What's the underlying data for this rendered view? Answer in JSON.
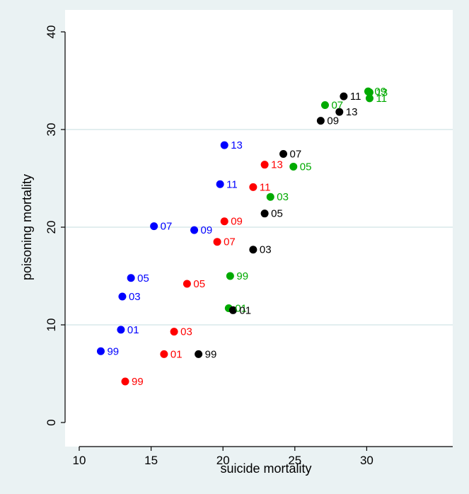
{
  "chart_data": {
    "type": "scatter",
    "title": "",
    "xlabel": "suicide mortality",
    "ylabel": "poisoning mortality",
    "xlim": [
      10,
      30.5
    ],
    "ylim": [
      0,
      40
    ],
    "xticks": [
      "10",
      "15",
      "20",
      "25",
      "30"
    ],
    "yticks": [
      "0",
      "10",
      "20",
      "30",
      "40"
    ],
    "grid": "horizontal",
    "legend": "none",
    "series": [
      {
        "color": "#0000ff",
        "points": [
          {
            "x": 11.5,
            "y": 7.3,
            "label": "99"
          },
          {
            "x": 12.9,
            "y": 9.5,
            "label": "01"
          },
          {
            "x": 13.0,
            "y": 12.9,
            "label": "03"
          },
          {
            "x": 13.6,
            "y": 14.8,
            "label": "05"
          },
          {
            "x": 15.2,
            "y": 20.1,
            "label": "07"
          },
          {
            "x": 18.0,
            "y": 19.7,
            "label": "09"
          },
          {
            "x": 19.8,
            "y": 24.4,
            "label": "11"
          },
          {
            "x": 20.1,
            "y": 28.4,
            "label": "13"
          }
        ]
      },
      {
        "color": "#ff0000",
        "points": [
          {
            "x": 13.2,
            "y": 4.2,
            "label": "99"
          },
          {
            "x": 15.9,
            "y": 7.0,
            "label": "01"
          },
          {
            "x": 16.6,
            "y": 9.3,
            "label": "03"
          },
          {
            "x": 17.5,
            "y": 14.2,
            "label": "05"
          },
          {
            "x": 19.6,
            "y": 18.5,
            "label": "07"
          },
          {
            "x": 20.1,
            "y": 20.6,
            "label": "09"
          },
          {
            "x": 22.1,
            "y": 24.1,
            "label": "11"
          },
          {
            "x": 22.9,
            "y": 26.4,
            "label": "13"
          }
        ]
      },
      {
        "color": "#00aa00",
        "points": [
          {
            "x": 20.5,
            "y": 15.0,
            "label": "99"
          },
          {
            "x": 20.4,
            "y": 11.7,
            "label": "01"
          },
          {
            "x": 23.3,
            "y": 23.1,
            "label": "03"
          },
          {
            "x": 24.9,
            "y": 26.2,
            "label": "05"
          },
          {
            "x": 27.1,
            "y": 32.5,
            "label": "07"
          },
          {
            "x": 30.1,
            "y": 33.9,
            "label": "09"
          },
          {
            "x": 30.2,
            "y": 33.2,
            "label": "11"
          },
          {
            "x": 30.2,
            "y": 33.8,
            "label": "13"
          }
        ]
      },
      {
        "color": "#000000",
        "points": [
          {
            "x": 18.3,
            "y": 7.0,
            "label": "99"
          },
          {
            "x": 20.7,
            "y": 11.5,
            "label": "01"
          },
          {
            "x": 22.1,
            "y": 17.7,
            "label": "03"
          },
          {
            "x": 22.9,
            "y": 21.4,
            "label": "05"
          },
          {
            "x": 24.2,
            "y": 27.5,
            "label": "07"
          },
          {
            "x": 26.8,
            "y": 30.9,
            "label": "09"
          },
          {
            "x": 28.4,
            "y": 33.4,
            "label": "11"
          },
          {
            "x": 28.1,
            "y": 31.8,
            "label": "13"
          }
        ]
      }
    ]
  }
}
